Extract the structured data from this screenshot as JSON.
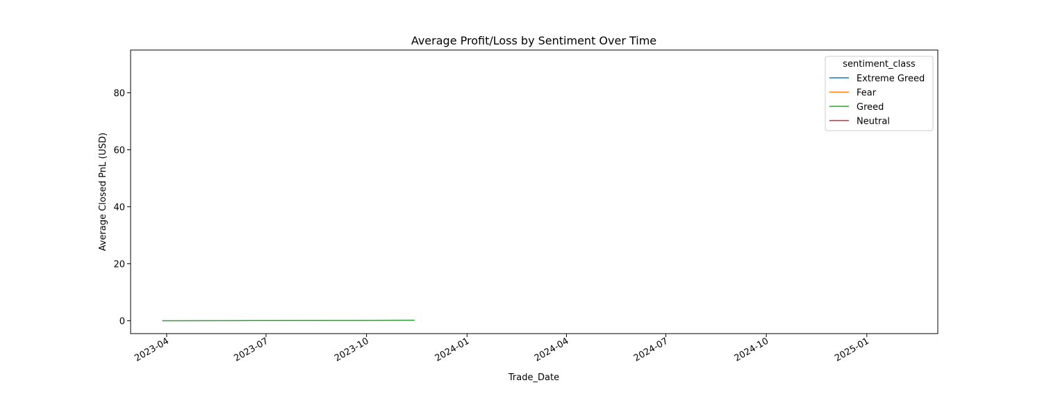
{
  "chart_data": {
    "type": "line",
    "title": "Average Profit/Loss by Sentiment Over Time",
    "xlabel": "Trade_Date",
    "ylabel": "Average Closed PnL (USD)",
    "x_axis_type": "date",
    "xlim": [
      "2023-02-27",
      "2025-03-07"
    ],
    "ylim": [
      -4.5,
      95
    ],
    "x_ticks": [
      "2023-04",
      "2023-07",
      "2023-10",
      "2024-01",
      "2024-04",
      "2024-07",
      "2024-10",
      "2025-01"
    ],
    "y_ticks": [
      0,
      20,
      40,
      60,
      80
    ],
    "grid": false,
    "legend": {
      "title": "sentiment_class",
      "placement": "top-right",
      "entries": [
        "Extreme Greed",
        "Fear",
        "Greed",
        "Neutral"
      ]
    },
    "series": [
      {
        "name": "Extreme Greed",
        "color": "#1f77b4",
        "x": [],
        "y": []
      },
      {
        "name": "Fear",
        "color": "#ff7f0e",
        "x": [],
        "y": []
      },
      {
        "name": "Greed",
        "color": "#2ca02c",
        "x": [
          "2023-03-28",
          "2023-07-01",
          "2023-10-01",
          "2023-11-14"
        ],
        "y": [
          0,
          0.05,
          0.1,
          0.2
        ]
      },
      {
        "name": "Neutral",
        "color": "#d62728",
        "x": [],
        "y": []
      }
    ]
  }
}
